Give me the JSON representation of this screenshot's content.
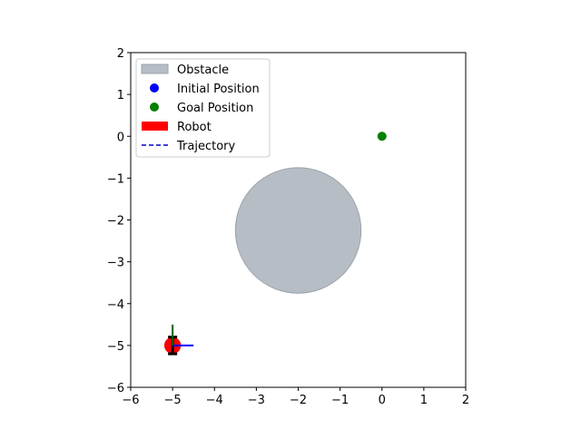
{
  "chart_data": {
    "type": "scatter",
    "title": "",
    "xlabel": "",
    "ylabel": "",
    "xlim": [
      -6,
      2
    ],
    "ylim": [
      -6,
      2
    ],
    "aspect": "equal",
    "x_ticks": [
      -6,
      -5,
      -4,
      -3,
      -2,
      -1,
      0,
      1,
      2
    ],
    "y_ticks": [
      -6,
      -5,
      -4,
      -3,
      -2,
      -1,
      0,
      1,
      2
    ],
    "x_tick_labels": [
      "−6",
      "−5",
      "−4",
      "−3",
      "−2",
      "−1",
      "0",
      "1",
      "2"
    ],
    "y_tick_labels": [
      "−6",
      "−5",
      "−4",
      "−3",
      "−2",
      "−1",
      "0",
      "1",
      "2"
    ],
    "grid": false,
    "legend_position": "top-left",
    "legend": [
      {
        "label": "Obstacle",
        "kind": "patch",
        "color": "#b6bdc4",
        "edge": "#9aa3ab"
      },
      {
        "label": "Initial Position",
        "kind": "marker",
        "color": "#0000ff"
      },
      {
        "label": "Goal Position",
        "kind": "marker",
        "color": "#008000"
      },
      {
        "label": "Robot",
        "kind": "patch",
        "color": "#ff0000"
      },
      {
        "label": "Trajectory",
        "kind": "dashed",
        "color": "#0000cc"
      }
    ],
    "obstacle": {
      "center": [
        -2,
        -2.25
      ],
      "radius": 1.5,
      "color": "#b6bdc4",
      "edge": "#9aa3ab"
    },
    "initial_position": {
      "x": -5,
      "y": -5,
      "color": "#0000ff"
    },
    "goal_position": {
      "x": 0,
      "y": 0,
      "color": "#008000"
    },
    "robot": {
      "x": -5,
      "y": -5,
      "radius": 0.2,
      "color": "#ff0000",
      "wheel_color": "#000000"
    },
    "heading_axes": [
      {
        "dx": 0.5,
        "dy": 0,
        "color": "#0000ff"
      },
      {
        "dx": 0,
        "dy": 0.5,
        "color": "#006400"
      }
    ]
  }
}
